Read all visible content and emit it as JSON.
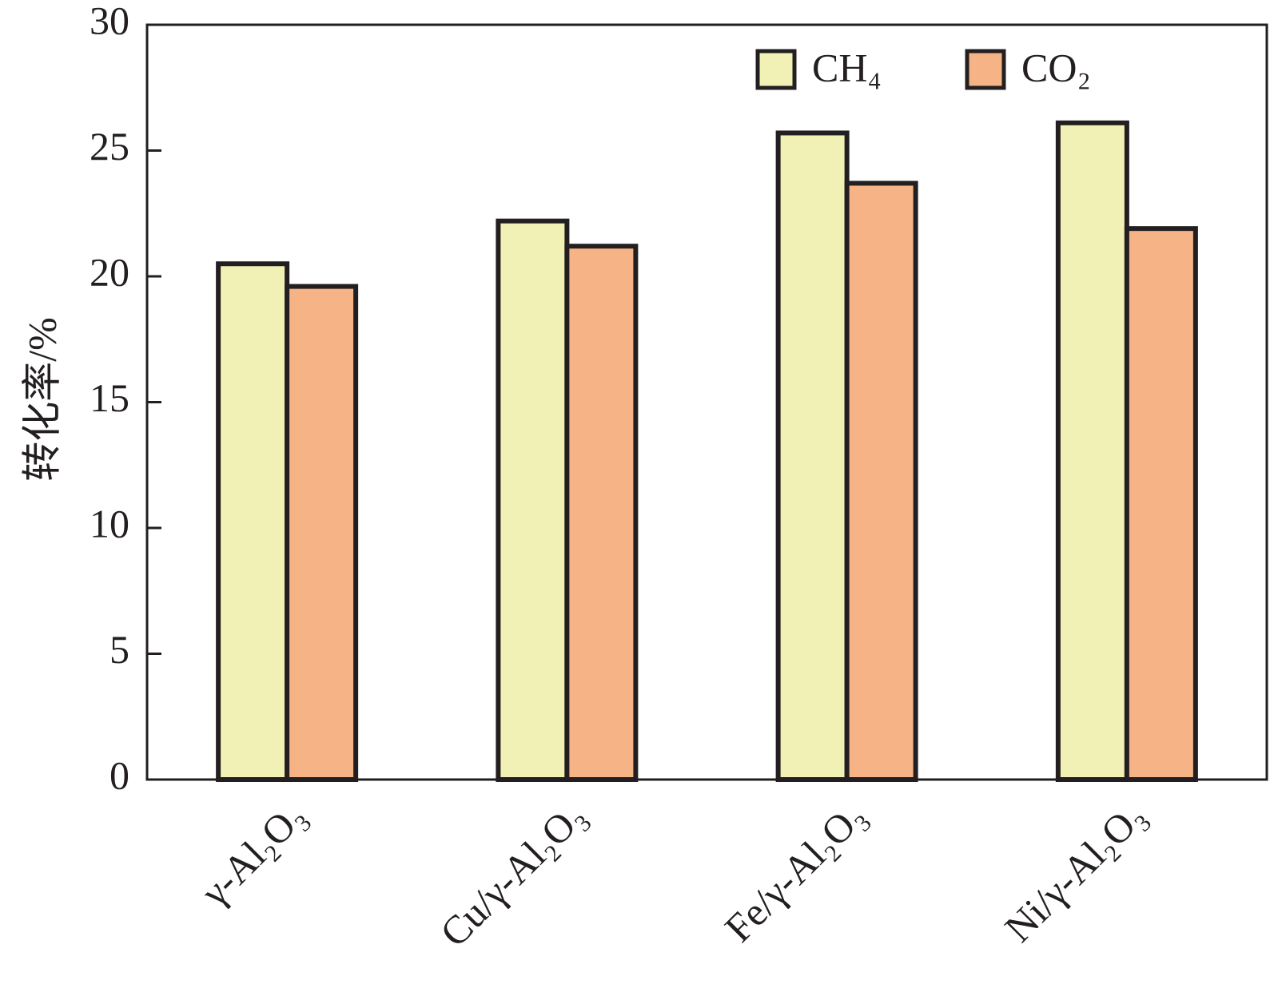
{
  "chart_data": {
    "type": "bar",
    "y_label": "转化率/%",
    "categories": [
      "γ-Al₂O₃",
      "Cu/γ-Al₂O₃",
      "Fe/γ-Al₂O₃",
      "Ni/γ-Al₂O₃"
    ],
    "series": [
      {
        "name": "CH₄",
        "color": "#f2f1b5",
        "values": [
          20.5,
          22.2,
          25.7,
          26.1
        ]
      },
      {
        "name": "CO₂",
        "color": "#f5b386",
        "values": [
          19.6,
          21.2,
          23.7,
          21.9
        ]
      }
    ],
    "ylim": [
      0,
      30
    ],
    "yticks": [
      0,
      5,
      10,
      15,
      20,
      25,
      30
    ],
    "grid": false,
    "legend": "top-right"
  }
}
